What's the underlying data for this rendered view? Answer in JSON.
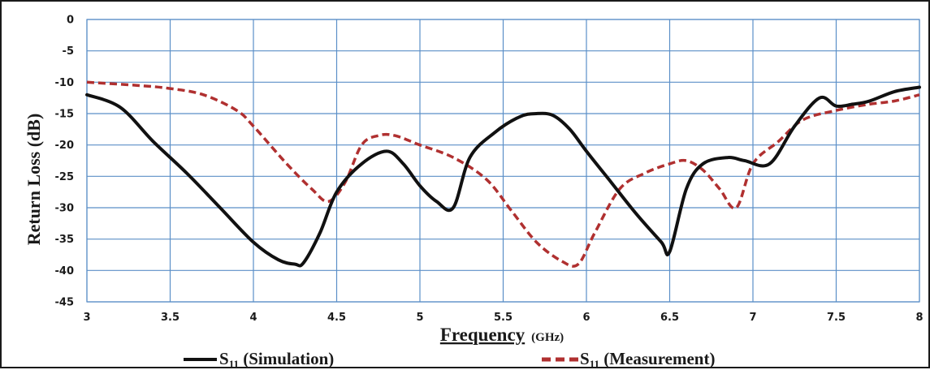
{
  "chart_data": {
    "type": "line",
    "title": "",
    "xlabel": "Frequency",
    "xlabel_unit": "(GHz)",
    "ylabel": "Return Loss (dB)",
    "xlim": [
      3,
      8
    ],
    "ylim": [
      -45,
      0
    ],
    "x_ticks": [
      "3",
      "3.5",
      "4",
      "4.5",
      "5",
      "5.5",
      "6",
      "6.5",
      "7",
      "7.5",
      "8"
    ],
    "y_ticks": [
      "0",
      "-5",
      "-10",
      "-15",
      "-20",
      "-25",
      "-30",
      "-35",
      "-40",
      "-45"
    ],
    "grid": true,
    "legend_position": "bottom",
    "series": [
      {
        "name": "S11 (Simulation)",
        "legend_main": "S",
        "legend_sub": "11",
        "legend_rest": " (Simulation)",
        "color": "#111111",
        "style": "solid",
        "x": [
          3.0,
          3.2,
          3.4,
          3.6,
          3.8,
          4.0,
          4.15,
          4.25,
          4.3,
          4.4,
          4.5,
          4.65,
          4.8,
          4.9,
          5.0,
          5.1,
          5.2,
          5.3,
          5.45,
          5.6,
          5.7,
          5.8,
          5.9,
          6.0,
          6.15,
          6.3,
          6.45,
          6.5,
          6.6,
          6.7,
          6.85,
          6.95,
          7.1,
          7.25,
          7.4,
          7.5,
          7.6,
          7.7,
          7.85,
          8.0
        ],
        "values": [
          -12,
          -14,
          -19.5,
          -24.5,
          -30,
          -35.5,
          -38.3,
          -39,
          -38.8,
          -34,
          -27.5,
          -23,
          -21,
          -23,
          -26.5,
          -29,
          -30,
          -22,
          -18,
          -15.5,
          -15,
          -15.3,
          -17.5,
          -21,
          -26,
          -31,
          -35.5,
          -37,
          -27,
          -23,
          -22,
          -22.5,
          -23,
          -17,
          -12.5,
          -13.8,
          -13.5,
          -13,
          -11.5,
          -10.8
        ]
      },
      {
        "name": "S11 (Measurement)",
        "legend_main": "S",
        "legend_sub": "11",
        "legend_rest": " (Measurement)",
        "color": "#b03030",
        "style": "dashed",
        "x": [
          3.0,
          3.3,
          3.5,
          3.7,
          3.9,
          4.0,
          4.2,
          4.35,
          4.45,
          4.55,
          4.65,
          4.75,
          4.85,
          5.0,
          5.2,
          5.4,
          5.55,
          5.7,
          5.85,
          5.95,
          6.05,
          6.2,
          6.35,
          6.5,
          6.6,
          6.7,
          6.8,
          6.9,
          7.0,
          7.15,
          7.3,
          7.5,
          7.7,
          7.85,
          8.0
        ],
        "values": [
          -10,
          -10.5,
          -11,
          -12,
          -14.5,
          -17,
          -23,
          -27,
          -29,
          -26,
          -20,
          -18.5,
          -18.5,
          -20,
          -22,
          -25.5,
          -30.5,
          -35.5,
          -38.5,
          -39,
          -34,
          -27,
          -24.5,
          -23,
          -22.5,
          -24,
          -27,
          -30,
          -23,
          -19.5,
          -16,
          -14.5,
          -13.5,
          -13,
          -12
        ]
      }
    ]
  }
}
